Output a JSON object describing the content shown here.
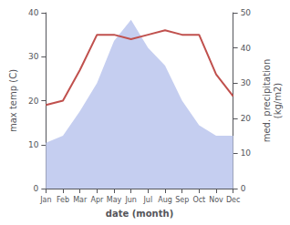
{
  "chart_data": {
    "type": "line",
    "categories": [
      "Jan",
      "Feb",
      "Mar",
      "Apr",
      "May",
      "Jun",
      "Jul",
      "Aug",
      "Sep",
      "Oct",
      "Nov",
      "Dec"
    ],
    "xlabel": "date (month)",
    "ylabel": "max temp (C)",
    "y2label": "med. precipitation\n(kg/m2)",
    "ylim": [
      0,
      40
    ],
    "yticks": [
      0,
      10,
      20,
      30,
      40
    ],
    "y2lim": [
      0,
      50
    ],
    "y2ticks": [
      0,
      10,
      20,
      30,
      40,
      50
    ],
    "grid": false,
    "series": [
      {
        "type": "area",
        "axis": "y2",
        "color": "#c5cef0",
        "values": [
          13,
          15,
          22,
          30,
          42,
          48,
          40,
          35,
          25,
          18,
          15,
          15
        ]
      },
      {
        "type": "line",
        "color": "#c0504d",
        "values": [
          19,
          20,
          27,
          35,
          35,
          34,
          35,
          36,
          35,
          35,
          26,
          21
        ]
      }
    ]
  }
}
